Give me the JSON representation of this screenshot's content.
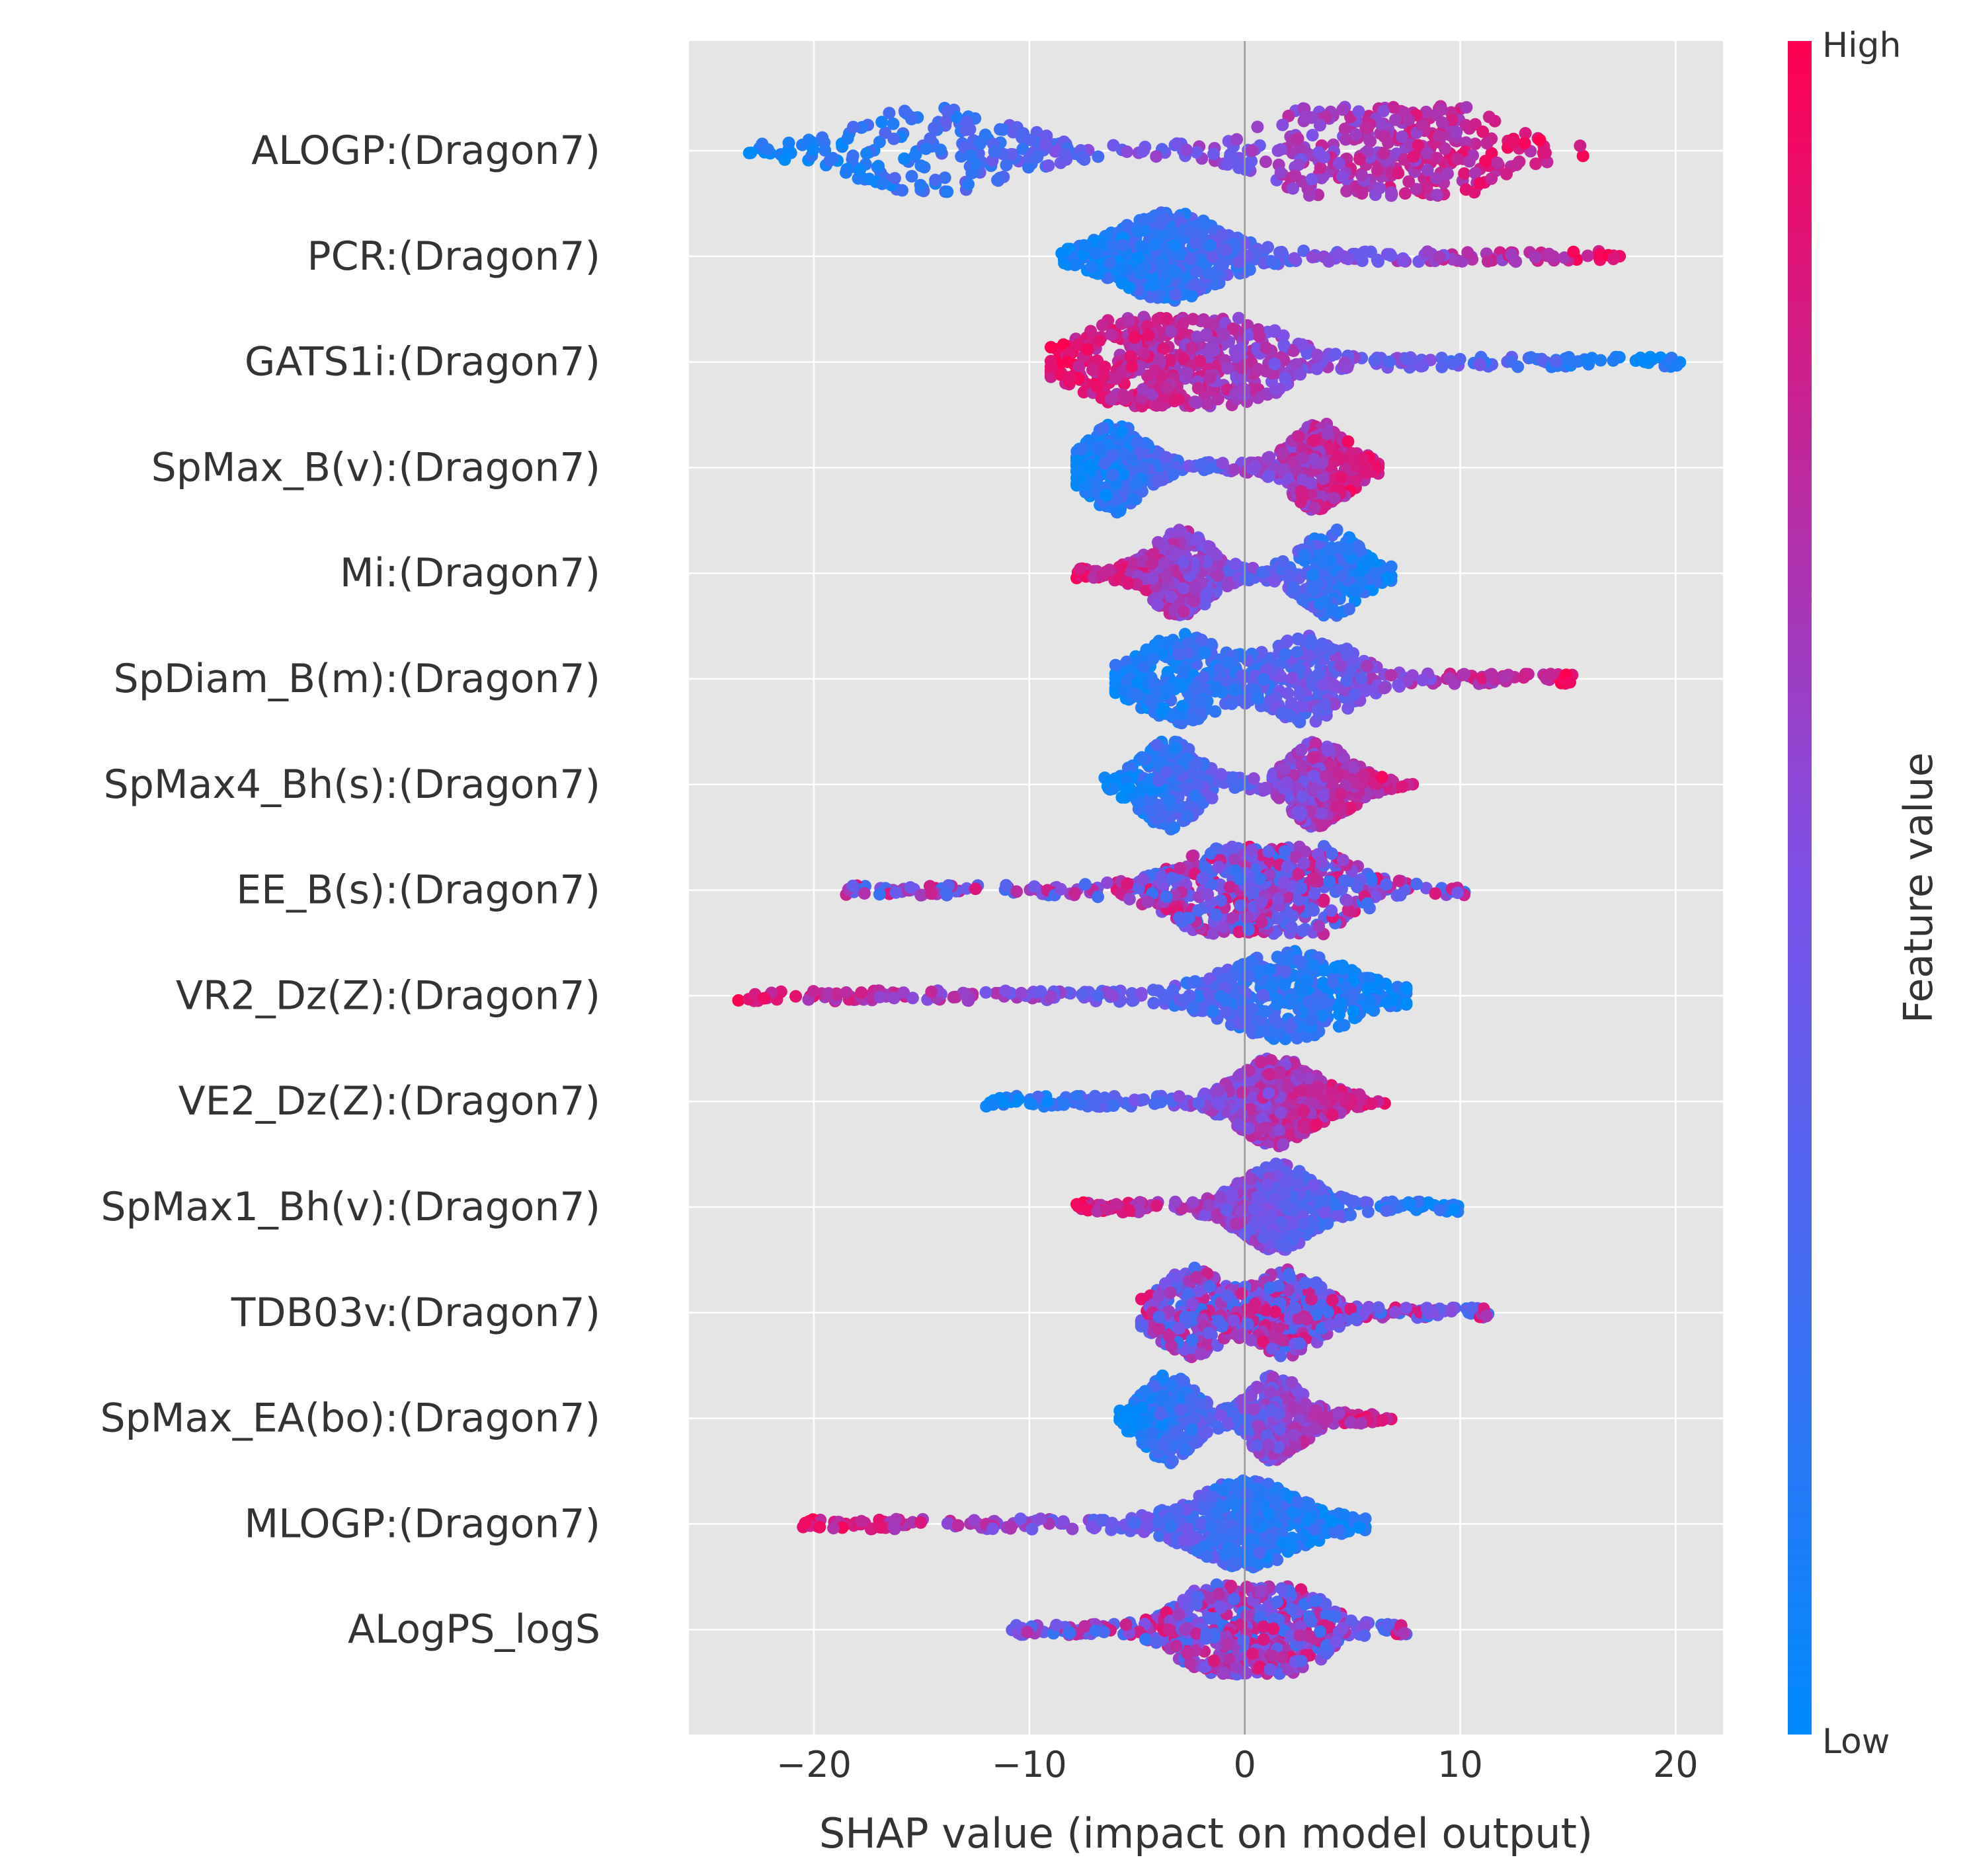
{
  "chart_data": {
    "type": "scatter",
    "subtype": "shap-beeswarm",
    "title": "",
    "xlabel": "SHAP value (impact on model output)",
    "ylabel": "",
    "xlim": [
      -25.8,
      22.2
    ],
    "xticks": [
      -20,
      -10,
      0,
      10,
      20
    ],
    "xtick_labels": [
      "−20",
      "−10",
      "0",
      "10",
      "20"
    ],
    "grid": true,
    "colorbar": {
      "label": "Feature value",
      "high_label": "High",
      "low_label": "Low",
      "low_color": "#008bfb",
      "high_color": "#ff0051",
      "placement": "right"
    },
    "colors": {
      "background": "#e5e5e5",
      "grid": "#ffffff",
      "zero_line": "#999999",
      "text": "#333333"
    },
    "features": [
      {
        "name": "ALOGP:(Dragon7)",
        "min": -23.0,
        "max": 15.7,
        "trend": "positive",
        "peaks": [
          -14.5,
          5,
          8
        ]
      },
      {
        "name": "PCR:(Dragon7)",
        "min": -8.5,
        "max": 17.4,
        "trend": "positive",
        "peaks": [
          -3.5
        ]
      },
      {
        "name": "GATS1i:(Dragon7)",
        "min": -9.0,
        "max": 20.2,
        "trend": "negative",
        "peaks": [
          -5,
          -1
        ]
      },
      {
        "name": "SpMax_B(v):(Dragon7)",
        "min": -7.8,
        "max": 6.2,
        "trend": "positive",
        "peaks": [
          -6,
          3.5
        ]
      },
      {
        "name": "Mi:(Dragon7)",
        "min": -7.8,
        "max": 6.8,
        "trend": "negative",
        "peaks": [
          -3,
          4
        ]
      },
      {
        "name": "SpDiam_B(m):(Dragon7)",
        "min": -6.0,
        "max": 15.2,
        "trend": "positive",
        "peaks": [
          -3,
          3
        ]
      },
      {
        "name": "SpMax4_Bh(s):(Dragon7)",
        "min": -6.5,
        "max": 7.8,
        "trend": "positive",
        "peaks": [
          -3.5,
          3.5
        ]
      },
      {
        "name": "EE_B(s):(Dragon7)",
        "min": -18.5,
        "max": 10.2,
        "trend": "mixed",
        "peaks": [
          -0.5,
          2
        ]
      },
      {
        "name": "VR2_Dz(Z):(Dragon7)",
        "min": -23.5,
        "max": 7.5,
        "trend": "negative",
        "peaks": [
          2
        ]
      },
      {
        "name": "VE2_Dz(Z):(Dragon7)",
        "min": -12.0,
        "max": 6.5,
        "trend": "positive",
        "peaks": [
          1.5
        ]
      },
      {
        "name": "SpMax1_Bh(v):(Dragon7)",
        "min": -7.8,
        "max": 9.9,
        "trend": "negative",
        "peaks": [
          1.5
        ]
      },
      {
        "name": "TDB03v:(Dragon7)",
        "min": -4.8,
        "max": 11.3,
        "trend": "mixed",
        "peaks": [
          -2.5,
          2
        ]
      },
      {
        "name": "SpMax_EA(bo):(Dragon7)",
        "min": -5.8,
        "max": 6.8,
        "trend": "positive",
        "peaks": [
          -3.5,
          1.5
        ]
      },
      {
        "name": "MLOGP:(Dragon7)",
        "min": -20.5,
        "max": 5.6,
        "trend": "negative",
        "peaks": [
          0
        ]
      },
      {
        "name": "ALogPS_logS",
        "min": -10.8,
        "max": 7.5,
        "trend": "mixed",
        "peaks": [
          -1.5,
          2
        ]
      }
    ]
  }
}
